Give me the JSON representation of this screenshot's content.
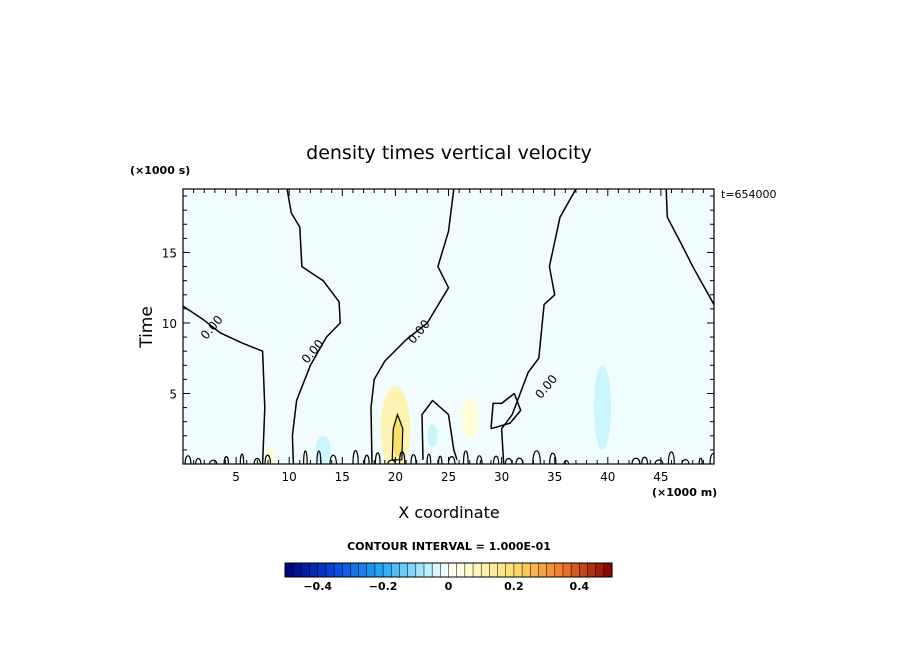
{
  "chart_data": {
    "type": "heatmap",
    "title": "density times vertical velocity",
    "xlabel": "X coordinate",
    "ylabel": "Time",
    "x_unit": "(×1000 m)",
    "y_unit": "(×1000 s)",
    "time_stamp": "t=654000",
    "xlim": [
      0,
      50
    ],
    "ylim": [
      0,
      19.5
    ],
    "x_ticks": [
      5,
      10,
      15,
      20,
      25,
      30,
      35,
      40,
      45
    ],
    "y_ticks": [
      5,
      10,
      15
    ],
    "contour_interval_text": "CONTOUR INTERVAL = 1.000E-01",
    "contour_labels": [
      {
        "text": "0.00",
        "x": 3,
        "y": 9.5
      },
      {
        "text": "0.00",
        "x": 12.5,
        "y": 7.8
      },
      {
        "text": "0.00",
        "x": 22.5,
        "y": 9.2
      },
      {
        "text": "0.00",
        "x": 34.5,
        "y": 5.3
      }
    ],
    "zero_contours": [
      [
        [
          0,
          11.2
        ],
        [
          1.8,
          10.3
        ],
        [
          3.5,
          9.3
        ],
        [
          5.5,
          8.6
        ],
        [
          7.5,
          8.0
        ],
        [
          7.7,
          4.0
        ],
        [
          7.5,
          0
        ]
      ],
      [
        [
          9.8,
          19.5
        ],
        [
          10.2,
          17.8
        ],
        [
          11.0,
          16.8
        ],
        [
          11.2,
          14.0
        ],
        [
          13.2,
          13.0
        ],
        [
          14.7,
          11.5
        ],
        [
          14.8,
          10.0
        ],
        [
          13.5,
          9.0
        ],
        [
          12.0,
          7.0
        ],
        [
          10.7,
          4.5
        ],
        [
          10.3,
          2.0
        ],
        [
          10.4,
          0
        ]
      ],
      [
        [
          25.5,
          19.5
        ],
        [
          25.0,
          16.5
        ],
        [
          24.0,
          14.0
        ],
        [
          25.0,
          12.5
        ],
        [
          23.0,
          10.0
        ],
        [
          21.0,
          8.8
        ],
        [
          19.0,
          7.3
        ],
        [
          18.0,
          6.0
        ],
        [
          17.7,
          4.0
        ],
        [
          17.8,
          0
        ]
      ],
      [
        [
          37.0,
          19.5
        ],
        [
          35.5,
          17.5
        ],
        [
          34.5,
          14.0
        ],
        [
          35.0,
          12.0
        ],
        [
          34.0,
          11.3
        ],
        [
          33.5,
          7.5
        ],
        [
          32.5,
          6.5
        ],
        [
          31.0,
          3.5
        ],
        [
          30.0,
          2.5
        ],
        [
          30.2,
          0
        ]
      ],
      [
        [
          45.5,
          19.5
        ],
        [
          45.6,
          17.5
        ],
        [
          47.0,
          15.5
        ],
        [
          48.0,
          14.0
        ],
        [
          50.0,
          11.3
        ]
      ],
      [
        [
          22.6,
          0.3
        ],
        [
          22.5,
          3.5
        ],
        [
          23.5,
          4.5
        ],
        [
          25.0,
          3.5
        ],
        [
          25.5,
          1.0
        ],
        [
          25.8,
          0.3
        ]
      ],
      [
        [
          29.0,
          2.5
        ],
        [
          29.2,
          4.3
        ],
        [
          30.0,
          4.3
        ],
        [
          31.2,
          5.0
        ],
        [
          31.8,
          3.8
        ],
        [
          30.8,
          2.9
        ],
        [
          29.0,
          2.5
        ]
      ]
    ],
    "inner_contour": [
      [
        19.7,
        0.3
      ],
      [
        19.8,
        2.5
      ],
      [
        20.2,
        3.5
      ],
      [
        20.7,
        2.5
      ],
      [
        20.6,
        0.3
      ],
      [
        19.7,
        0.3
      ]
    ],
    "shading": [
      {
        "x": 20.0,
        "y": 2.5,
        "rx": 1.4,
        "ry": 3.0,
        "value": 0.1
      },
      {
        "x": 20.2,
        "y": 2.0,
        "rx": 0.5,
        "ry": 1.5,
        "value": 0.2
      },
      {
        "x": 27.0,
        "y": 3.3,
        "rx": 0.8,
        "ry": 1.4,
        "value": 0.05
      },
      {
        "x": 39.5,
        "y": 4.0,
        "rx": 0.8,
        "ry": 3.0,
        "value": -0.05
      },
      {
        "x": 13.2,
        "y": 1.0,
        "rx": 0.7,
        "ry": 1.0,
        "value": -0.05
      },
      {
        "x": 23.5,
        "y": 2.0,
        "rx": 0.5,
        "ry": 0.8,
        "value": -0.05
      },
      {
        "x": 8.2,
        "y": 0.6,
        "rx": 0.5,
        "ry": 0.6,
        "value": 0.05
      }
    ],
    "colorbar": {
      "min": -0.5,
      "max": 0.5,
      "tick_values": [
        -0.4,
        -0.2,
        0,
        0.2,
        0.4
      ],
      "tick_labels": [
        "−0.4",
        "−0.2",
        "0",
        "0.2",
        "0.4"
      ]
    }
  }
}
